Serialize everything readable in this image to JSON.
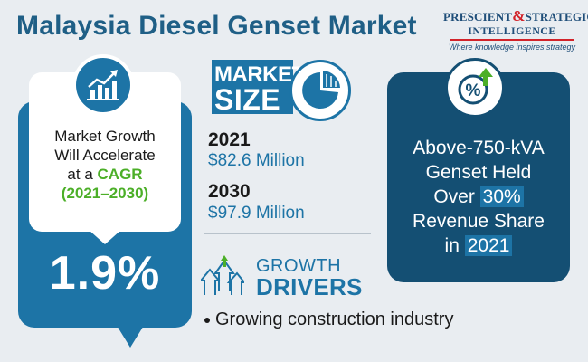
{
  "title": "Malaysia Diesel Genset Market",
  "logo": {
    "line1_a": "PRESCIENT",
    "amp": "&",
    "line1_b": "STRATEGIC",
    "line2": "INTELLIGENCE",
    "tagline": "Where knowledge inspires strategy"
  },
  "growth": {
    "icon": "bar-chart-growth-icon",
    "text_line1": "Market Growth",
    "text_line2": "Will Accelerate",
    "text_line3_prefix": "at a ",
    "cagr_label": "CAGR",
    "period": "(2021–2030)",
    "value": "1.9%"
  },
  "market_size": {
    "label_line1": "MARKET",
    "label_line2": "SIZE",
    "icon": "pie-chart-icon",
    "entries": [
      {
        "year": "2021",
        "amount": "$82.6 Million"
      },
      {
        "year": "2030",
        "amount": "$97.9 Million"
      }
    ]
  },
  "growth_drivers": {
    "icon": "growth-arrows-icon",
    "label_line1": "GROWTH",
    "label_line2": "DRIVERS",
    "items": [
      "Growing construction industry"
    ]
  },
  "segment": {
    "icon": "percent-up-icon",
    "line1": "Above-750-kVA",
    "line2": "Genset Held",
    "line3_prefix": "Over ",
    "share": "30%",
    "line4": "Revenue Share",
    "line5_prefix": "in ",
    "year": "2021"
  },
  "colors": {
    "accent_blue": "#1d74a6",
    "dark_blue": "#144f73",
    "title_blue": "#1f5f86",
    "green": "#4caf28",
    "logo_red": "#d2232a",
    "background": "#e9edf1"
  }
}
